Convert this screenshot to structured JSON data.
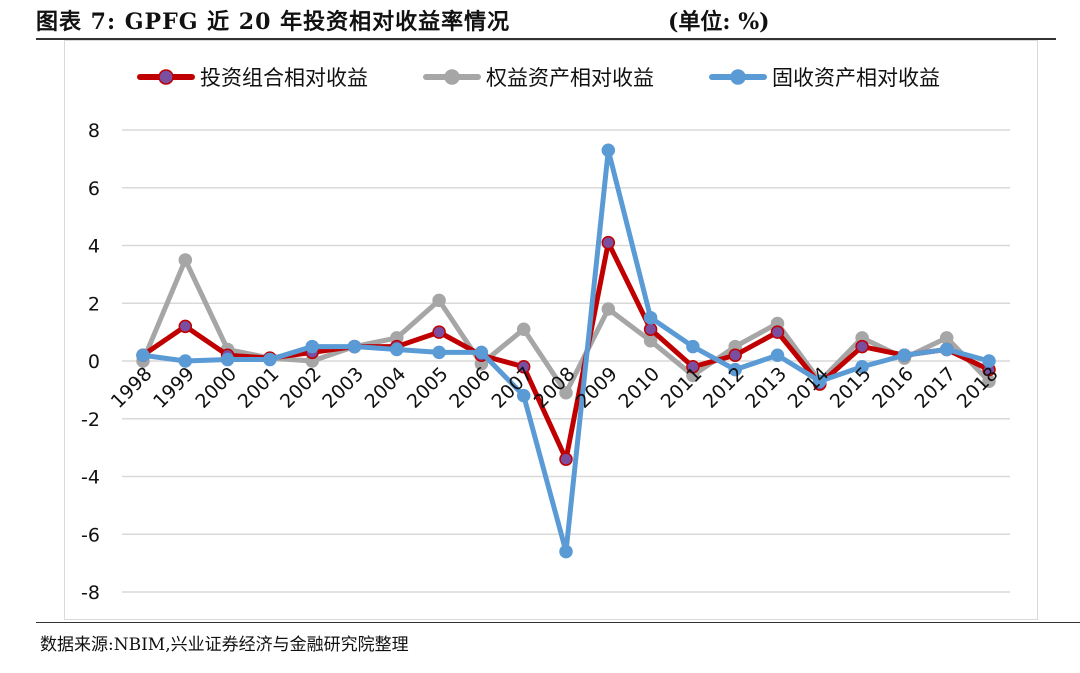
{
  "header": {
    "title": "图表 7: GPFG 近 20 年投资相对收益率情况",
    "unit": "(单位: %)"
  },
  "footer": {
    "source": "数据来源:NBIM,兴业证券经济与金融研究院整理"
  },
  "chart_data": {
    "type": "line",
    "title": "",
    "xlabel": "",
    "ylabel": "",
    "categories": [
      "1998",
      "1999",
      "2000",
      "2001",
      "2002",
      "2003",
      "2004",
      "2005",
      "2006",
      "2007",
      "2008",
      "2009",
      "2010",
      "2011",
      "2012",
      "2013",
      "2014",
      "2015",
      "2016",
      "2017",
      "2018"
    ],
    "ylim": [
      -8,
      8
    ],
    "yticks": [
      "8",
      "6",
      "4",
      "2",
      "0",
      "-2",
      "-4",
      "-6",
      "-8"
    ],
    "grid": true,
    "legend_position": "top",
    "series": [
      {
        "name": "投资组合相对收益",
        "color": "#C00000",
        "marker_fill": "#7B4FA0",
        "values": [
          0.2,
          1.2,
          0.2,
          0.1,
          0.3,
          0.5,
          0.5,
          1.0,
          0.2,
          -0.2,
          -3.4,
          4.1,
          1.1,
          -0.2,
          0.2,
          1.0,
          -0.8,
          0.5,
          0.2,
          0.4,
          -0.3
        ]
      },
      {
        "name": "权益资产相对收益",
        "color": "#A6A6A6",
        "marker_fill": "#A6A6A6",
        "values": [
          0.0,
          3.5,
          0.4,
          0.1,
          0.0,
          0.5,
          0.8,
          2.1,
          -0.1,
          1.1,
          -1.1,
          1.8,
          0.7,
          -0.5,
          0.5,
          1.3,
          -0.7,
          0.8,
          0.1,
          0.8,
          -0.7
        ]
      },
      {
        "name": "固收资产相对收益",
        "color": "#5B9BD5",
        "marker_fill": "#5B9BD5",
        "values": [
          0.2,
          0.0,
          0.05,
          0.05,
          0.5,
          0.5,
          0.4,
          0.3,
          0.3,
          -1.2,
          -6.6,
          7.3,
          1.5,
          0.5,
          -0.3,
          0.2,
          -0.7,
          -0.2,
          0.2,
          0.4,
          0.0
        ]
      }
    ]
  }
}
